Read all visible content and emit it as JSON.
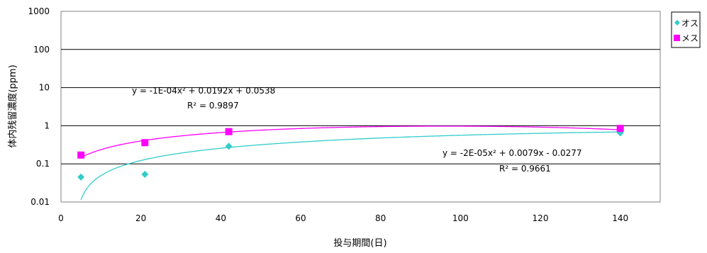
{
  "chart_data": {
    "type": "scatter",
    "xlabel": "投与期間(日)",
    "ylabel": "体内残留濃度(ppm)",
    "xlim": [
      0,
      150
    ],
    "ylim": [
      0.01,
      1000
    ],
    "y_scale": "log",
    "x_ticks": [
      0,
      20,
      40,
      60,
      80,
      100,
      120,
      140
    ],
    "y_ticks": [
      {
        "value": 0.01,
        "label": "0.01"
      },
      {
        "value": 0.1,
        "label": "0.1"
      },
      {
        "value": 1,
        "label": "1"
      },
      {
        "value": 10,
        "label": "10"
      },
      {
        "value": 100,
        "label": "100"
      },
      {
        "value": 1000,
        "label": "1000"
      }
    ],
    "grid": "horizontal",
    "legend_position": "right",
    "series": [
      {
        "name": "オス",
        "marker": "diamond",
        "color": "#33cccc",
        "x": [
          5,
          21,
          42,
          140
        ],
        "y": [
          0.045,
          0.053,
          0.29,
          0.65
        ],
        "trendline": {
          "a": -2e-05,
          "b": 0.0079,
          "c": -0.0277,
          "x_range": [
            5,
            140
          ]
        },
        "equation": "y = -2E-05x² + 0.0079x - 0.0277",
        "r2": "R² = 0.9661"
      },
      {
        "name": "メス",
        "marker": "square",
        "color": "#ff00ff",
        "x": [
          5,
          21,
          42,
          140
        ],
        "y": [
          0.17,
          0.36,
          0.7,
          0.85
        ],
        "trendline": {
          "a": -0.0001,
          "b": 0.0192,
          "c": 0.0538,
          "x_range": [
            5,
            140
          ]
        },
        "equation": "y = -1E-04x² + 0.0192x + 0.0538",
        "r2": "R² = 0.9897"
      }
    ]
  }
}
